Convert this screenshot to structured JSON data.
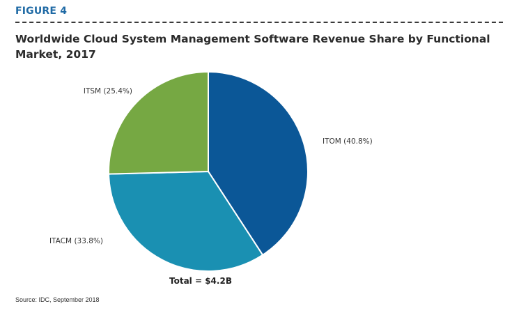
{
  "figure": {
    "label": "FIGURE 4",
    "title": "Worldwide Cloud System Management Software Revenue Share by Functional Market, 2017",
    "source": "Source: IDC, September 2018"
  },
  "chart_data": {
    "type": "pie",
    "total_label": "Total = $4.2B",
    "slices": [
      {
        "name": "ITOM",
        "label": "ITOM (40.8%)",
        "value": 40.8,
        "color": "#0b5797"
      },
      {
        "name": "ITACM",
        "label": "ITACM (33.8%)",
        "value": 33.8,
        "color": "#1a90b2"
      },
      {
        "name": "ITSM",
        "label": "ITSM (25.4%)",
        "value": 25.4,
        "color": "#76a843"
      }
    ]
  }
}
